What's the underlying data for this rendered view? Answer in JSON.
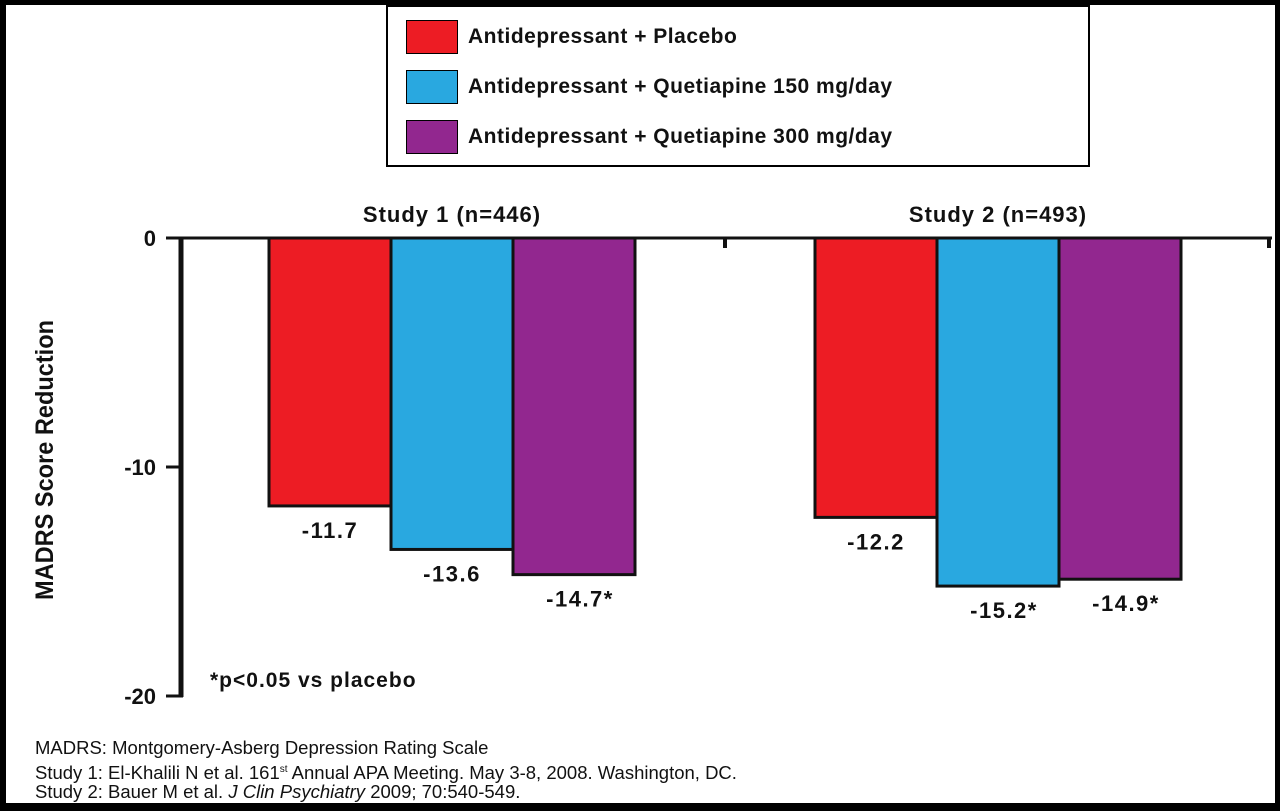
{
  "chart_data": {
    "type": "bar",
    "title": "",
    "ylabel": "MADRS Score Reduction",
    "xlabel": "",
    "ylim": [
      -20,
      0
    ],
    "yticks": [
      "0",
      "-10",
      "-20"
    ],
    "grid": false,
    "legend_placement": "top-center",
    "categories": [
      "Study 1 (n=446)",
      "Study 2 (n=493)"
    ],
    "series": [
      {
        "name": "Antidepressant + Placebo",
        "color": "#ed1c24",
        "values": [
          -11.7,
          -12.2
        ],
        "labels": [
          "-11.7",
          "-12.2"
        ]
      },
      {
        "name": "Antidepressant + Quetiapine 150 mg/day",
        "color": "#29a8e0",
        "values": [
          -13.6,
          -15.2
        ],
        "labels": [
          "-13.6",
          "-15.2*"
        ]
      },
      {
        "name": "Antidepressant + Quetiapine 300 mg/day",
        "color": "#92278f",
        "values": [
          -14.7,
          -14.9
        ],
        "labels": [
          "-14.7*",
          "-14.9*"
        ]
      }
    ],
    "annotation": "*p<0.05 vs placebo"
  },
  "footnotes": {
    "line1": "MADRS: Montgomery-Asberg Depression Rating Scale",
    "line2_pre": "Study 1: El-Khalili N et al. 161",
    "line2_sup": "st",
    "line2_post": " Annual APA Meeting. May 3-8, 2008. Washington, DC.",
    "line3_pre": "Study 2: Bauer M et al. ",
    "line3_journal": "J Clin Psychiatry",
    "line3_post": " 2009; 70:540-549."
  }
}
